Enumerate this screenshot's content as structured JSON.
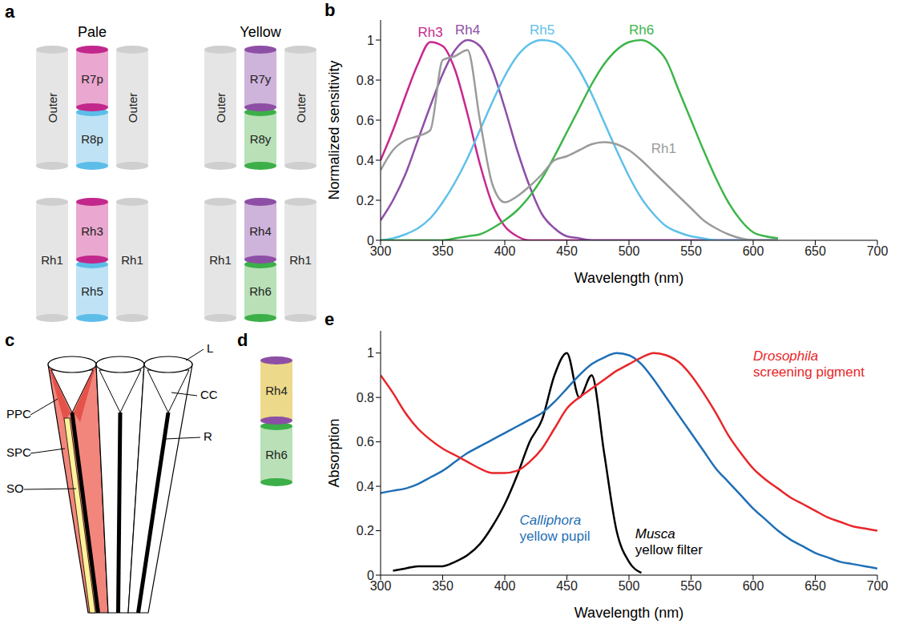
{
  "chart_data": [
    {
      "label": "b",
      "type": "line",
      "x_label": "Wavelength (nm)",
      "y_label": "Normalized sensitivity",
      "xlim": [
        300,
        700
      ],
      "xticks": [
        300,
        350,
        400,
        450,
        500,
        550,
        600,
        650,
        700
      ],
      "ylim": [
        0,
        1.1
      ],
      "yticks": [
        0,
        0.2,
        0.4,
        0.6,
        0.8,
        1
      ],
      "grid": false,
      "x": [
        300,
        310,
        320,
        330,
        340,
        350,
        360,
        370,
        380,
        390,
        400,
        410,
        420,
        430,
        440,
        450,
        460,
        470,
        480,
        490,
        500,
        510,
        520,
        530,
        540,
        550,
        560,
        570,
        580,
        590,
        600,
        610,
        620
      ],
      "series": [
        {
          "name": "Rh3",
          "color": "#c8288f",
          "values": [
            0.4,
            0.55,
            0.72,
            0.88,
            0.99,
            0.97,
            0.85,
            0.63,
            0.38,
            0.18,
            0.07,
            0.02,
            0,
            0,
            0,
            0,
            0,
            0,
            0,
            0,
            0,
            0,
            0,
            0,
            0,
            0,
            0,
            0,
            0,
            0,
            0,
            0,
            0
          ]
        },
        {
          "name": "Rh4",
          "color": "#8e4fa6",
          "values": [
            0.1,
            0.2,
            0.33,
            0.5,
            0.67,
            0.83,
            0.95,
            1.0,
            0.97,
            0.85,
            0.66,
            0.45,
            0.27,
            0.13,
            0.06,
            0.02,
            0.01,
            0,
            0,
            0,
            0,
            0,
            0,
            0,
            0,
            0,
            0,
            0,
            0,
            0,
            0,
            0,
            0
          ]
        },
        {
          "name": "Rh5",
          "color": "#5ec0ea",
          "values": [
            0,
            0.01,
            0.03,
            0.06,
            0.11,
            0.19,
            0.29,
            0.41,
            0.55,
            0.69,
            0.82,
            0.92,
            0.98,
            1.0,
            0.99,
            0.94,
            0.85,
            0.73,
            0.59,
            0.45,
            0.32,
            0.21,
            0.13,
            0.07,
            0.04,
            0.02,
            0.01,
            0,
            0,
            0,
            0,
            0,
            0
          ]
        },
        {
          "name": "Rh6",
          "color": "#3db54a",
          "values": [
            0,
            0,
            0,
            0,
            0,
            0,
            0.01,
            0.02,
            0.03,
            0.06,
            0.1,
            0.15,
            0.22,
            0.31,
            0.42,
            0.54,
            0.66,
            0.78,
            0.88,
            0.95,
            0.99,
            1.0,
            0.97,
            0.9,
            0.75,
            0.6,
            0.45,
            0.31,
            0.19,
            0.1,
            0.04,
            0.02,
            0.01
          ]
        },
        {
          "name": "Rh1",
          "color": "#9b9b9b",
          "values": [
            0.35,
            0.45,
            0.5,
            0.52,
            0.55,
            0.9,
            0.92,
            0.95,
            0.6,
            0.28,
            0.19,
            0.22,
            0.27,
            0.33,
            0.4,
            0.42,
            0.45,
            0.48,
            0.49,
            0.48,
            0.45,
            0.4,
            0.34,
            0.28,
            0.22,
            0.16,
            0.1,
            0.06,
            0.03,
            0.01,
            0,
            0,
            0
          ]
        }
      ]
    },
    {
      "label": "e",
      "type": "line",
      "x_label": "Wavelength (nm)",
      "y_label": "Absorption",
      "xlim": [
        300,
        700
      ],
      "xticks": [
        300,
        350,
        400,
        450,
        500,
        550,
        600,
        650,
        700
      ],
      "ylim": [
        0,
        1.1
      ],
      "yticks": [
        0,
        0.2,
        0.4,
        0.6,
        0.8,
        1
      ],
      "grid": false,
      "x": [
        300,
        310,
        320,
        330,
        340,
        350,
        360,
        370,
        380,
        390,
        400,
        410,
        420,
        430,
        440,
        450,
        460,
        470,
        480,
        490,
        500,
        510,
        520,
        530,
        540,
        550,
        560,
        570,
        580,
        590,
        600,
        610,
        620,
        630,
        640,
        650,
        660,
        670,
        680,
        690,
        700
      ],
      "series": [
        {
          "name": "Musca yellow filter",
          "color": "#000000",
          "values": [
            null,
            0.02,
            0.03,
            0.04,
            0.04,
            0.04,
            0.06,
            0.09,
            0.14,
            0.22,
            0.32,
            0.45,
            0.6,
            0.7,
            0.9,
            1.0,
            0.8,
            0.9,
            0.55,
            0.2,
            0.06,
            0.01,
            null,
            null,
            null,
            null,
            null,
            null,
            null,
            null,
            null,
            null,
            null,
            null,
            null,
            null,
            null,
            null,
            null,
            null,
            null
          ]
        },
        {
          "name": "Calliphora yellow pupil",
          "color": "#1f6fb5",
          "values": [
            0.37,
            0.38,
            0.39,
            0.41,
            0.44,
            0.47,
            0.51,
            0.55,
            0.58,
            0.61,
            0.64,
            0.67,
            0.7,
            0.73,
            0.78,
            0.84,
            0.9,
            0.95,
            0.98,
            1.0,
            0.99,
            0.95,
            0.88,
            0.8,
            0.72,
            0.64,
            0.56,
            0.48,
            0.42,
            0.36,
            0.3,
            0.25,
            0.2,
            0.16,
            0.13,
            0.1,
            0.08,
            0.06,
            0.05,
            0.04,
            0.03
          ]
        },
        {
          "name": "Drosophila screening pigment",
          "color": "#e8262a",
          "values": [
            0.9,
            0.82,
            0.73,
            0.66,
            0.61,
            0.57,
            0.54,
            0.51,
            0.48,
            0.46,
            0.46,
            0.47,
            0.51,
            0.57,
            0.66,
            0.75,
            0.8,
            0.84,
            0.88,
            0.92,
            0.95,
            0.98,
            1.0,
            0.99,
            0.96,
            0.9,
            0.82,
            0.73,
            0.63,
            0.55,
            0.48,
            0.43,
            0.39,
            0.35,
            0.32,
            0.29,
            0.26,
            0.24,
            0.22,
            0.21,
            0.2
          ]
        }
      ]
    }
  ],
  "diagrams": {
    "a": {
      "label": "a",
      "groups": [
        {
          "title": "Pale",
          "rows": [
            {
              "left": "Outer",
              "upper": "R7p",
              "lower": "R8p",
              "right": "Outer"
            },
            {
              "left": "Rh1",
              "upper": "Rh3",
              "lower": "Rh5",
              "right": "Rh1"
            }
          ]
        },
        {
          "title": "Yellow",
          "rows": [
            {
              "left": "Outer",
              "upper": "R7y",
              "lower": "R8y",
              "right": "Outer"
            },
            {
              "left": "Rh1",
              "upper": "Rh4",
              "lower": "Rh6",
              "right": "Rh1"
            }
          ]
        }
      ]
    },
    "c": {
      "label": "c",
      "left_labels": [
        "PPC",
        "SPC",
        "SO"
      ],
      "right_labels": [
        "L",
        "CC",
        "R"
      ]
    },
    "d": {
      "label": "d",
      "upper": "Rh4",
      "lower": "Rh6"
    }
  }
}
